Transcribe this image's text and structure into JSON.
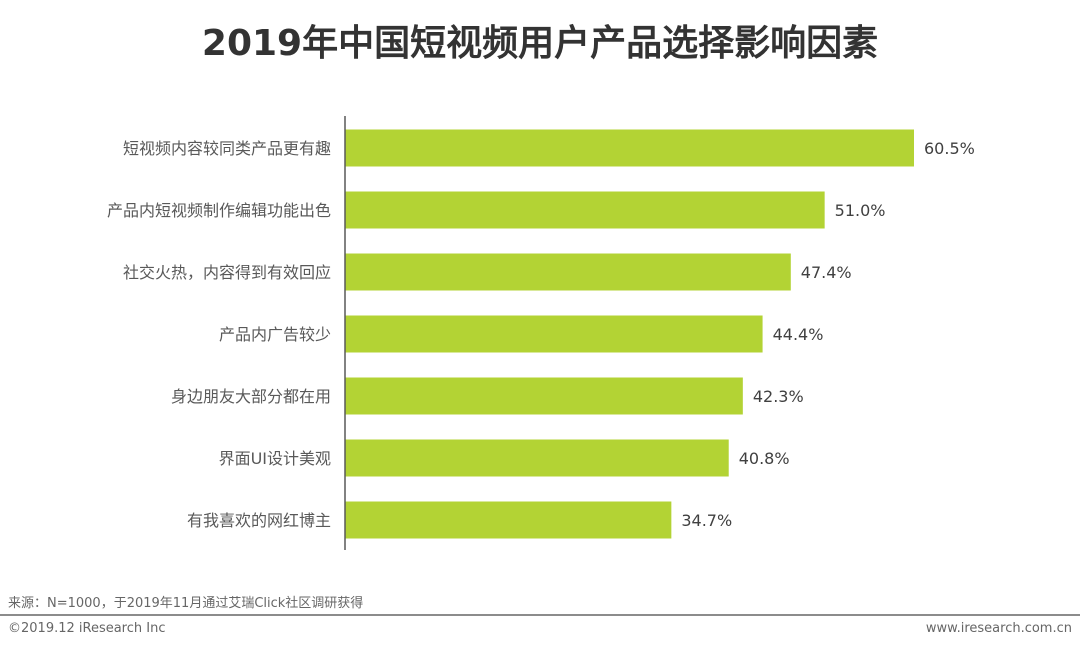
{
  "chart_data": {
    "type": "bar",
    "orientation": "horizontal",
    "title": "2019年中国短视频用户产品选择影响因素",
    "categories": [
      "短视频内容较同类产品更有趣",
      "产品内短视频制作编辑功能出色",
      "社交火热，内容得到有效回应",
      "产品内广告较少",
      "身边朋友大部分都在用",
      "界面UI设计美观",
      "有我喜欢的网红博主"
    ],
    "values": [
      60.5,
      51.0,
      47.4,
      44.4,
      42.3,
      40.8,
      34.7
    ],
    "value_labels": [
      "60.5%",
      "51.0%",
      "47.4%",
      "44.4%",
      "42.3%",
      "40.8%",
      "34.7%"
    ],
    "unit": "%",
    "xlim": [
      0,
      65
    ],
    "grid": false,
    "bar_color": "#b3d334"
  },
  "footer": {
    "source": "来源：N=1000，于2019年11月通过艾瑞Click社区调研获得",
    "copyright": "©2019.12 iResearch Inc",
    "website": "www.iresearch.com.cn"
  }
}
